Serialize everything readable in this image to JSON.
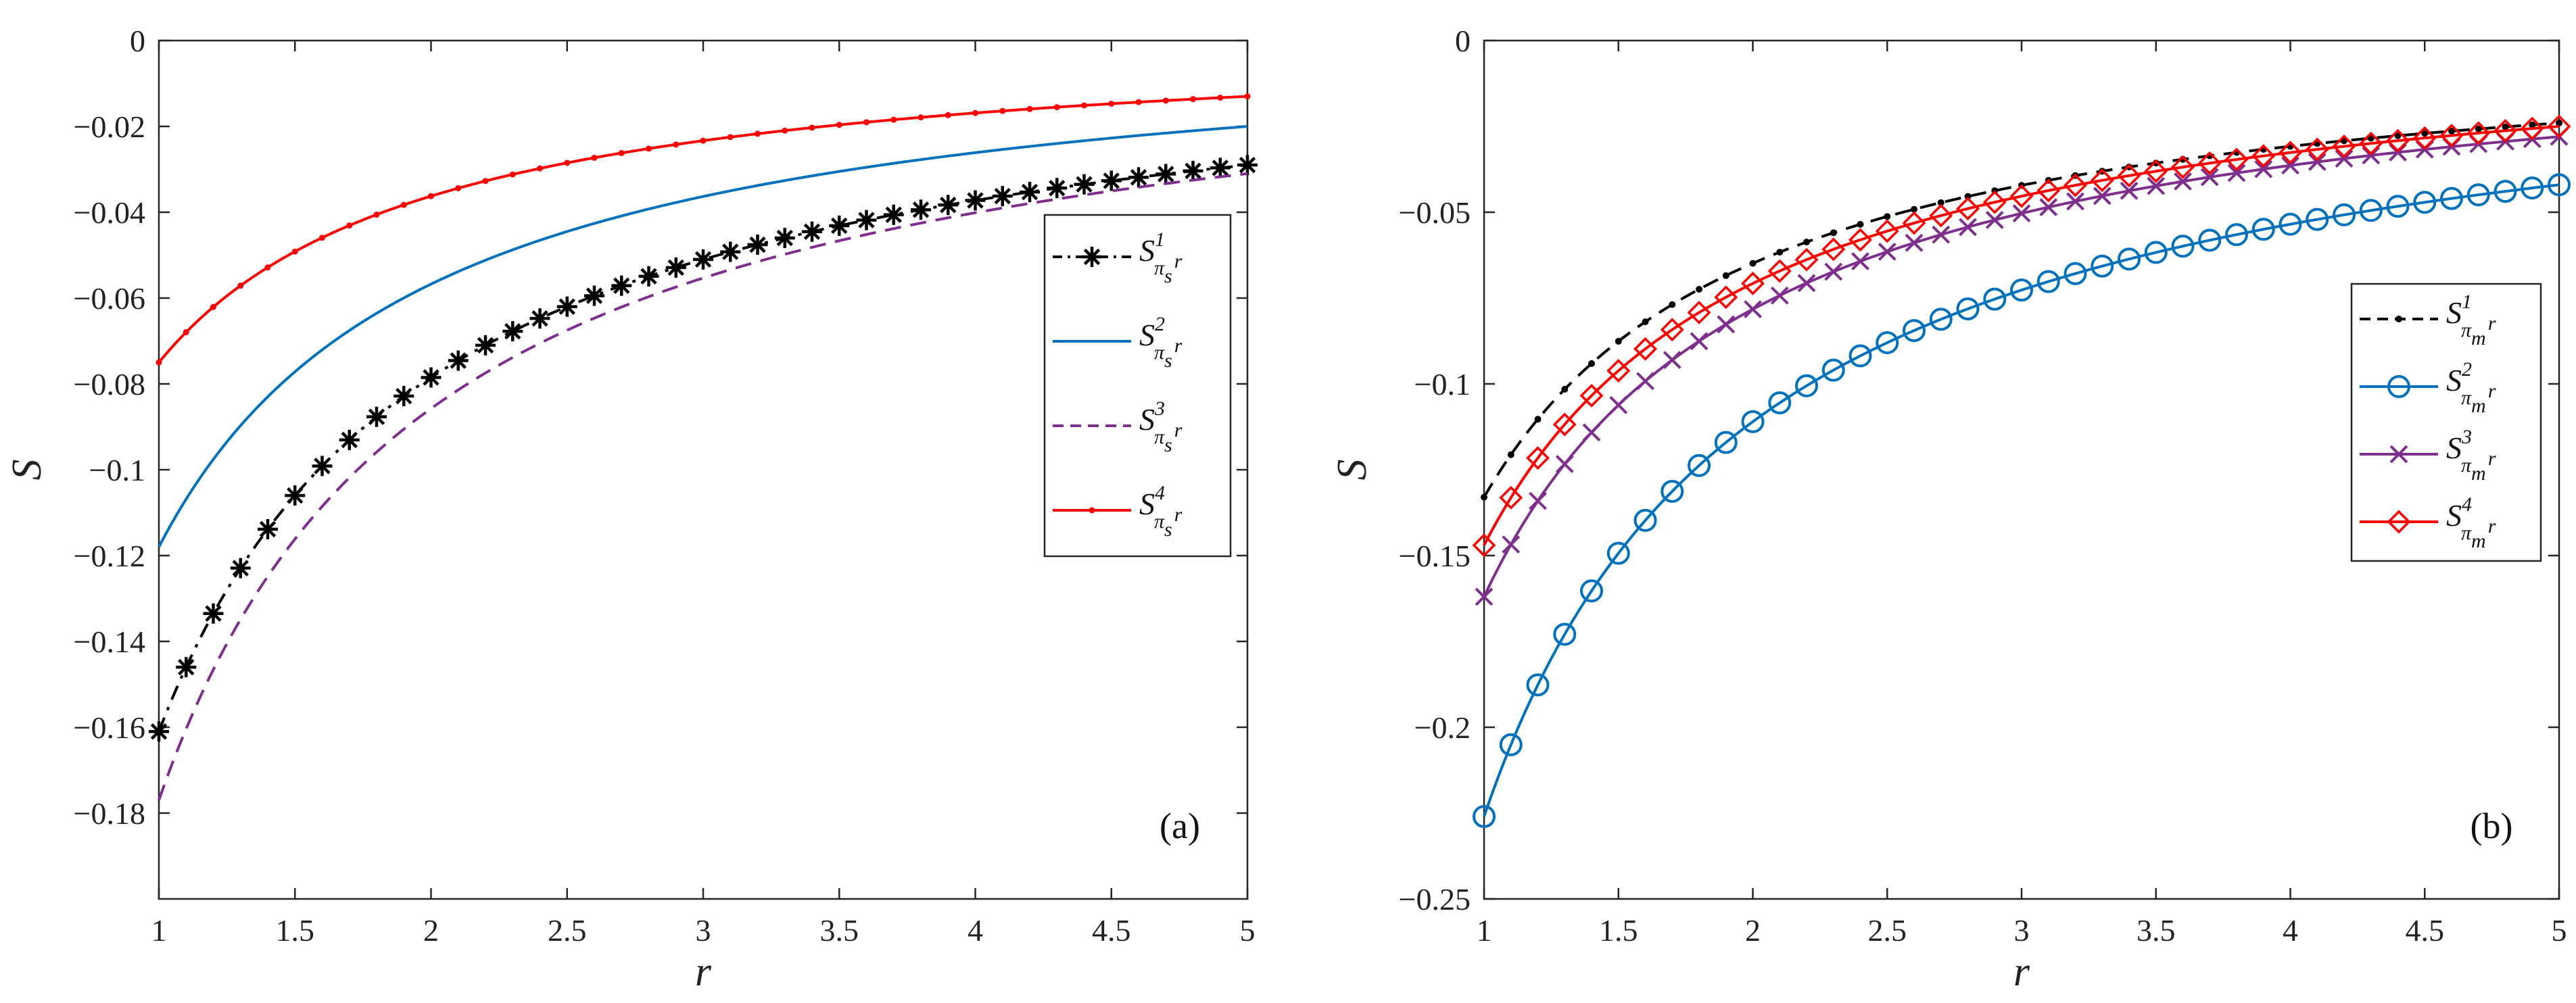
{
  "chart_data": [
    {
      "type": "line",
      "panel_label": "(a)",
      "xlabel": "r",
      "ylabel": "S",
      "xlim": [
        1,
        5
      ],
      "ylim": [
        -0.2,
        0
      ],
      "xticks": [
        1,
        1.5,
        2,
        2.5,
        3,
        3.5,
        4,
        4.5,
        5
      ],
      "xtick_labels": [
        "1",
        "1.5",
        "2",
        "2.5",
        "3",
        "3.5",
        "4",
        "4.5",
        "5"
      ],
      "yticks": [
        0,
        -0.02,
        -0.04,
        -0.06,
        -0.08,
        -0.1,
        -0.12,
        -0.14,
        -0.16,
        -0.18
      ],
      "ytick_labels": [
        "0",
        "−0.02",
        "−0.04",
        "−0.06",
        "−0.08",
        "−0.1",
        "−0.12",
        "−0.14",
        "−0.16",
        "−0.18"
      ],
      "legend_position": "center-right",
      "series": [
        {
          "name": "S^1_{π_s r}",
          "base": "S",
          "sup": "1",
          "sub": "π",
          "subsub": "s",
          "subtail": "r",
          "color": "#000000",
          "style": "dashdot",
          "marker": "asterisk",
          "marker_every": 1,
          "marker_size": 30,
          "v1": -0.161,
          "v5": -0.029
        },
        {
          "name": "S^2_{π_s r}",
          "base": "S",
          "sup": "2",
          "sub": "π",
          "subsub": "s",
          "subtail": "r",
          "color": "#0072BD",
          "style": "solid",
          "marker": "none",
          "v1": -0.118,
          "v5": -0.02
        },
        {
          "name": "S^3_{π_s r}",
          "base": "S",
          "sup": "3",
          "sub": "π",
          "subsub": "s",
          "subtail": "r",
          "color": "#7E2F8E",
          "style": "dashed",
          "marker": "none",
          "v1": -0.177,
          "v5": -0.031
        },
        {
          "name": "S^4_{π_s r}",
          "base": "S",
          "sup": "4",
          "sub": "π",
          "subsub": "s",
          "subtail": "r",
          "color": "#FF0000",
          "style": "solid",
          "marker": "dot",
          "marker_every": 1,
          "marker_size": 9,
          "v1": -0.075,
          "v5": -0.013
        }
      ]
    },
    {
      "type": "line",
      "panel_label": "(b)",
      "xlabel": "r",
      "ylabel": "S",
      "xlim": [
        1,
        5
      ],
      "ylim": [
        -0.25,
        0
      ],
      "xticks": [
        1,
        1.5,
        2,
        2.5,
        3,
        3.5,
        4,
        4.5,
        5
      ],
      "xtick_labels": [
        "1",
        "1.5",
        "2",
        "2.5",
        "3",
        "3.5",
        "4",
        "4.5",
        "5"
      ],
      "yticks": [
        0,
        -0.05,
        -0.1,
        -0.15,
        -0.2,
        -0.25
      ],
      "ytick_labels": [
        "0",
        "−0.05",
        "−0.1",
        "−0.15",
        "−0.2",
        "−0.25"
      ],
      "legend_position": "center-right",
      "series": [
        {
          "name": "S^1_{π_m r}",
          "base": "S",
          "sup": "1",
          "sub": "π",
          "subsub": "m",
          "subtail": "r",
          "color": "#000000",
          "style": "dashed",
          "marker": "dot",
          "marker_every": 1,
          "marker_size": 10,
          "v1": -0.133,
          "v5": -0.024
        },
        {
          "name": "S^2_{π_m r}",
          "base": "S",
          "sup": "2",
          "sub": "π",
          "subsub": "m",
          "subtail": "r",
          "color": "#0072BD",
          "style": "solid",
          "marker": "circle",
          "marker_every": 1,
          "marker_size": 30,
          "v1": -0.226,
          "v5": -0.042
        },
        {
          "name": "S^3_{π_m r}",
          "base": "S",
          "sup": "3",
          "sub": "π",
          "subsub": "m",
          "subtail": "r",
          "color": "#7E2F8E",
          "style": "solid",
          "marker": "x",
          "marker_every": 1,
          "marker_size": 24,
          "v1": -0.162,
          "v5": -0.028
        },
        {
          "name": "S^4_{π_m r}",
          "base": "S",
          "sup": "4",
          "sub": "π",
          "subsub": "m",
          "subtail": "r",
          "color": "#FF0000",
          "style": "solid",
          "marker": "diamond",
          "marker_every": 1,
          "marker_size": 30,
          "v1": -0.147,
          "v5": -0.025
        }
      ]
    }
  ]
}
